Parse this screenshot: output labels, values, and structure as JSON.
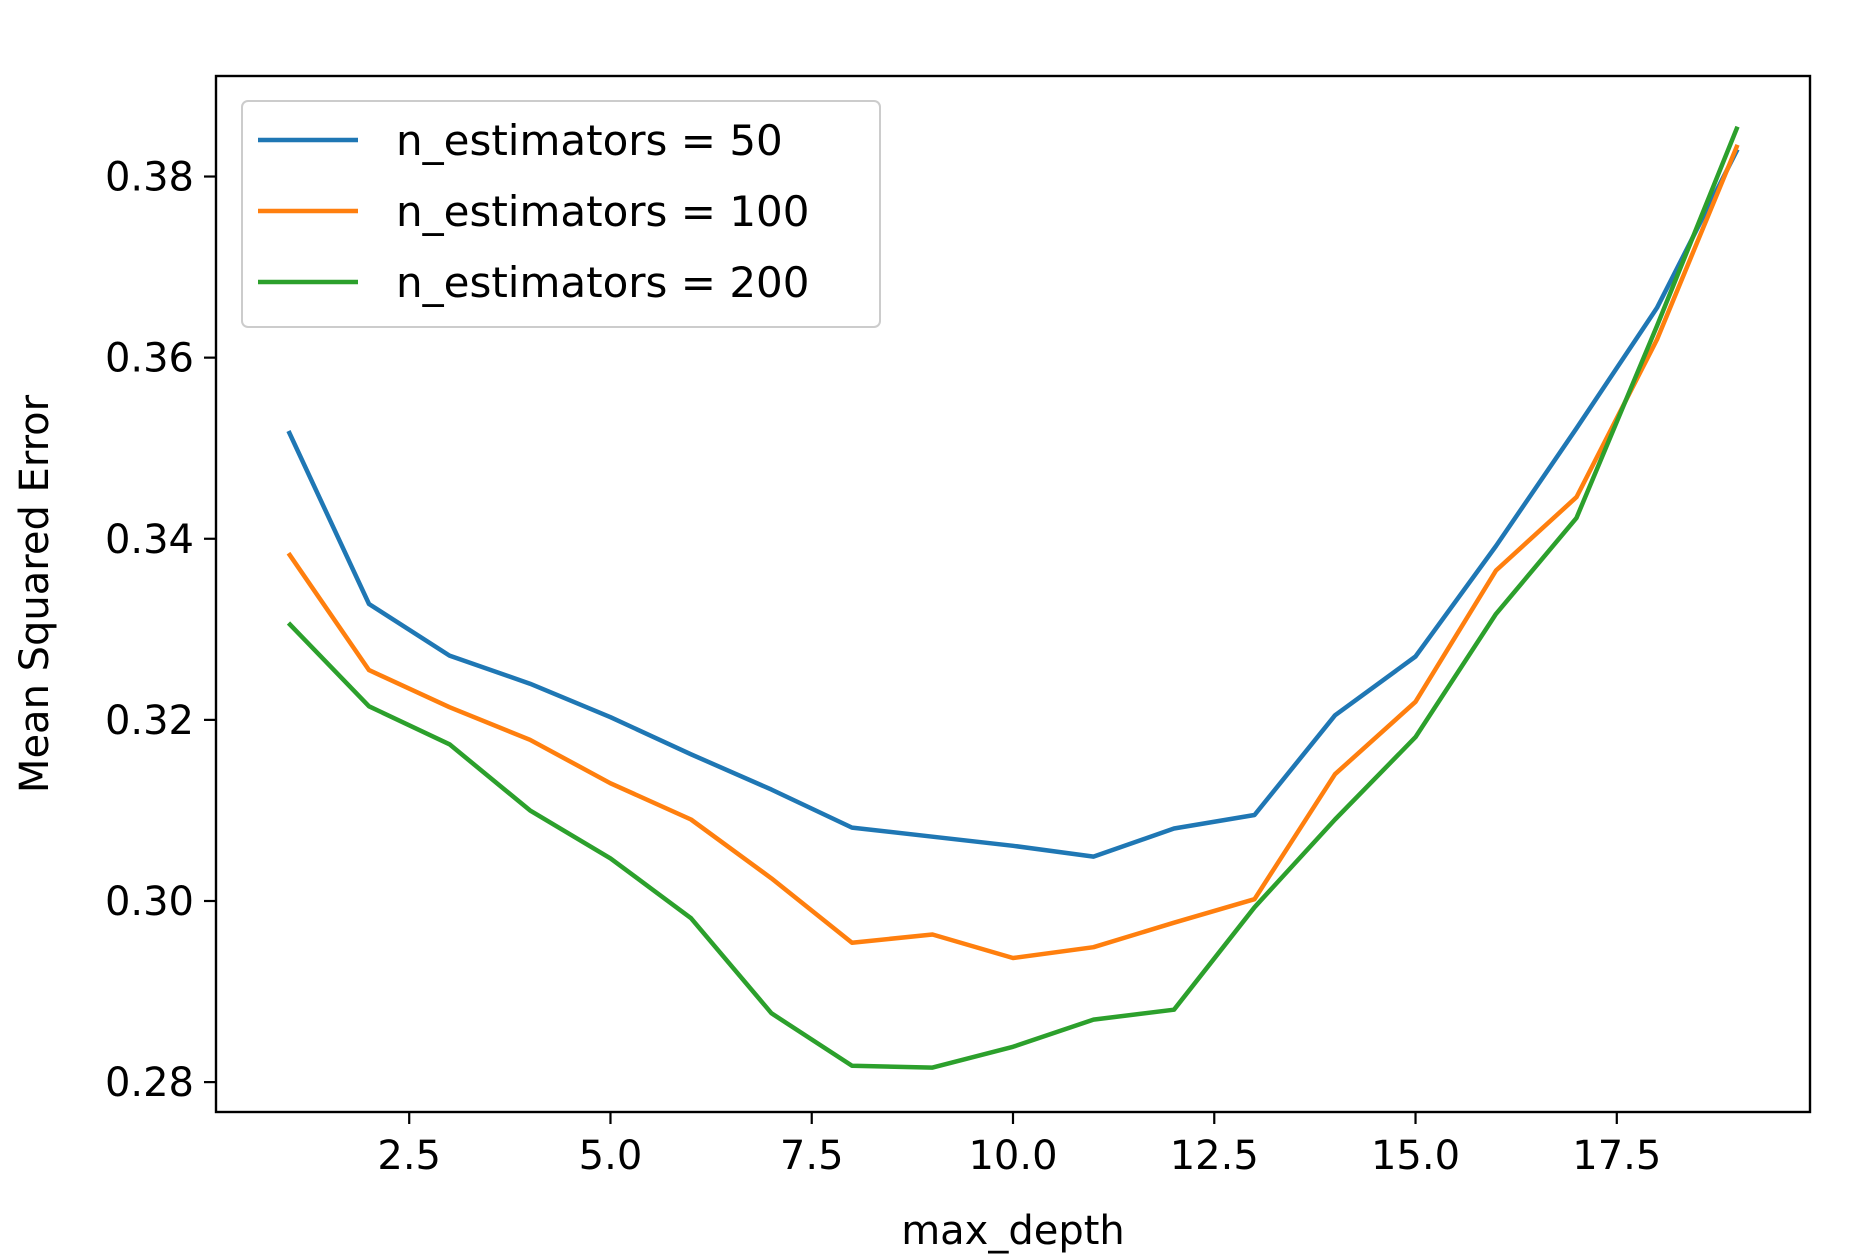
{
  "chart_data": {
    "type": "line",
    "title": "",
    "xlabel": "max_depth",
    "ylabel": "Mean Squared Error",
    "xlim": [
      0.1,
      19.9
    ],
    "ylim": [
      0.2767,
      0.3911
    ],
    "xticks": [
      2.5,
      5.0,
      7.5,
      10.0,
      12.5,
      15.0,
      17.5
    ],
    "xtick_labels": [
      "2.5",
      "5.0",
      "7.5",
      "10.0",
      "12.5",
      "15.0",
      "17.5"
    ],
    "yticks": [
      0.28,
      0.3,
      0.32,
      0.34,
      0.36,
      0.38
    ],
    "ytick_labels": [
      "0.28",
      "0.30",
      "0.32",
      "0.34",
      "0.36",
      "0.38"
    ],
    "grid": false,
    "legend_position": "top-left",
    "x": [
      1,
      2,
      3,
      4,
      5,
      6,
      7,
      8,
      9,
      10,
      11,
      12,
      13,
      14,
      15,
      16,
      17,
      18,
      19
    ],
    "series": [
      {
        "name": "n_estimators = 50",
        "color": "#1f77b4",
        "values": [
          0.3519,
          0.3328,
          0.3271,
          0.324,
          0.3203,
          0.3162,
          0.3123,
          0.3081,
          0.3071,
          0.3061,
          0.3049,
          0.308,
          0.3095,
          0.3205,
          0.327,
          0.3392,
          0.3522,
          0.3655,
          0.383
        ]
      },
      {
        "name": "n_estimators = 100",
        "color": "#ff7f0e",
        "values": [
          0.3384,
          0.3255,
          0.3214,
          0.3178,
          0.313,
          0.309,
          0.3025,
          0.2954,
          0.2963,
          0.2937,
          0.2949,
          0.2976,
          0.3002,
          0.314,
          0.322,
          0.3365,
          0.3446,
          0.362,
          0.3835
        ]
      },
      {
        "name": "n_estimators = 200",
        "color": "#2ca02c",
        "values": [
          0.3307,
          0.3215,
          0.3173,
          0.31,
          0.3047,
          0.2981,
          0.2876,
          0.2818,
          0.2816,
          0.2839,
          0.2869,
          0.288,
          0.2993,
          0.309,
          0.3181,
          0.3317,
          0.3423,
          0.3635,
          0.3855
        ]
      }
    ]
  }
}
